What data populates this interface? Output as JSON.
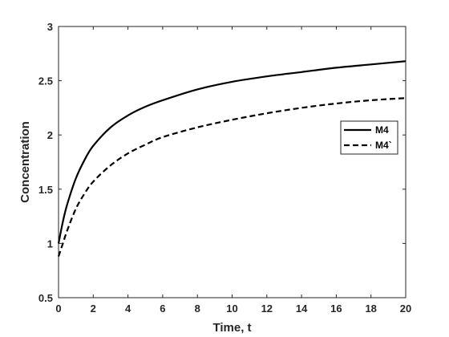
{
  "chart_data": {
    "type": "line",
    "title": "",
    "xlabel": "Time, t",
    "ylabel": "Concentration",
    "xlim": [
      0,
      20
    ],
    "ylim": [
      0.5,
      3
    ],
    "xticks": [
      "0",
      "2",
      "4",
      "6",
      "8",
      "10",
      "12",
      "14",
      "16",
      "18",
      "20"
    ],
    "yticks": [
      "0.5",
      "1",
      "1.5",
      "2",
      "2.5",
      "3"
    ],
    "grid": false,
    "legend_position": "right",
    "series": [
      {
        "name": "M4",
        "style": "solid",
        "color": "#000000",
        "x": [
          0,
          0.25,
          0.5,
          1,
          1.5,
          2,
          3,
          4,
          5,
          6,
          8,
          10,
          12,
          14,
          16,
          18,
          20
        ],
        "y": [
          1.0,
          1.2,
          1.36,
          1.6,
          1.77,
          1.9,
          2.07,
          2.18,
          2.26,
          2.32,
          2.42,
          2.49,
          2.54,
          2.58,
          2.62,
          2.65,
          2.68
        ]
      },
      {
        "name": "M4`",
        "style": "dashed",
        "color": "#000000",
        "x": [
          0,
          0.25,
          0.5,
          1,
          1.5,
          2,
          3,
          4,
          5,
          6,
          8,
          10,
          12,
          14,
          16,
          18,
          20
        ],
        "y": [
          0.88,
          1.0,
          1.12,
          1.32,
          1.46,
          1.57,
          1.72,
          1.83,
          1.91,
          1.98,
          2.07,
          2.14,
          2.2,
          2.25,
          2.29,
          2.32,
          2.34
        ]
      }
    ]
  }
}
